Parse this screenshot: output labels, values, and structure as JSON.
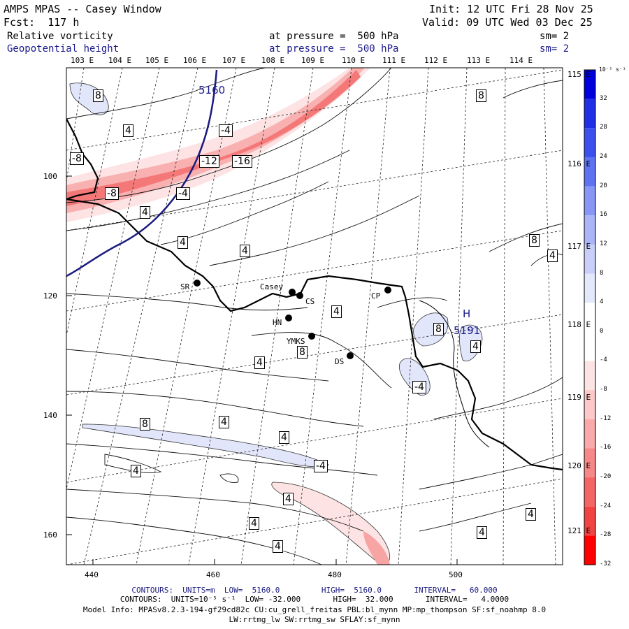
{
  "header": {
    "title": "AMPS MPAS -- Casey Window",
    "init": "Init: 12 UTC Fri 28 Nov 25",
    "forecast": "Fcst:  117 h",
    "valid": "Valid: 09 UTC Wed 03 Dec 25",
    "field1": {
      "name": "Relative vorticity",
      "pressure": "at pressure =  500 hPa",
      "smooth": "sm= 2"
    },
    "field2": {
      "name": "Geopotential height",
      "pressure": "at pressure =  500 hPa",
      "smooth": "sm= 2"
    }
  },
  "axes": {
    "x_ticks": [
      "440",
      "460",
      "480",
      "500"
    ],
    "y_ticks": [
      "100",
      "120",
      "140",
      "160"
    ],
    "top_lon": [
      "103 E",
      "104 E",
      "105 E",
      "106 E",
      "107 E",
      "108 E",
      "109 E",
      "110 E",
      "111 E",
      "112 E",
      "113 E",
      "114 E"
    ],
    "right_lon": [
      "115 E",
      "116 E",
      "117 E",
      "118 E",
      "119 E",
      "120 E",
      "121 E"
    ]
  },
  "colorbar": {
    "unit": "10⁻⁵ s⁻¹",
    "labels": [
      "32",
      "28",
      "24",
      "20",
      "16",
      "12",
      "8",
      "4",
      "0",
      "-4",
      "-8",
      "-12",
      "-16",
      "-20",
      "-24",
      "-28",
      "-32"
    ],
    "colors": [
      "#0000dc",
      "#1f2fe6",
      "#3c50ee",
      "#5f73f2",
      "#8896f5",
      "#aab4f7",
      "#c8cff9",
      "#e4e8fb",
      "#ffffff",
      "#ffffff",
      "#fde4e4",
      "#fcc8c8",
      "#f9a9a9",
      "#f68888",
      "#f46666",
      "#f24343",
      "#ff0000"
    ]
  },
  "stations": [
    {
      "id": "SR",
      "label": "SR"
    },
    {
      "id": "Casey",
      "label": "Casey"
    },
    {
      "id": "CS",
      "label": "CS"
    },
    {
      "id": "HN",
      "label": "HN"
    },
    {
      "id": "YMKS",
      "label": "YMKS"
    },
    {
      "id": "DS",
      "label": "DS"
    },
    {
      "id": "CP",
      "label": "CP"
    }
  ],
  "height_contour_label": "5160",
  "high_marker": {
    "symbol": "H",
    "value": "5191"
  },
  "vort_labels": [
    "8",
    "4",
    "-4",
    "-8",
    "-12",
    "-16",
    "-8",
    "-4",
    "4",
    "4",
    "4",
    "4",
    "4",
    "8",
    "8",
    "8",
    "4",
    "8",
    "4",
    "-4",
    "8",
    "4",
    "-4",
    "4",
    "4",
    "4",
    "4",
    "4",
    "4",
    "4"
  ],
  "footer": {
    "line1": "CONTOURS:  UNITS=m  LOW=  5160.0         HIGH=  5160.0       INTERVAL=   60.000",
    "line2": "CONTOURS:  UNITS=10⁻⁵ s⁻¹  LOW= -32.000       HIGH=  32.000       INTERVAL=   4.0000",
    "line3": "Model Info: MPASv8.2.3-194-gf29cd82c CU:cu_grell_freitas PBL:bl_mynn MP:mp_thompson SF:sf_noahmp 8.0",
    "line4": "LW:rrtmg_lw SW:rrtmg_sw SFLAY:sf_mynn"
  }
}
